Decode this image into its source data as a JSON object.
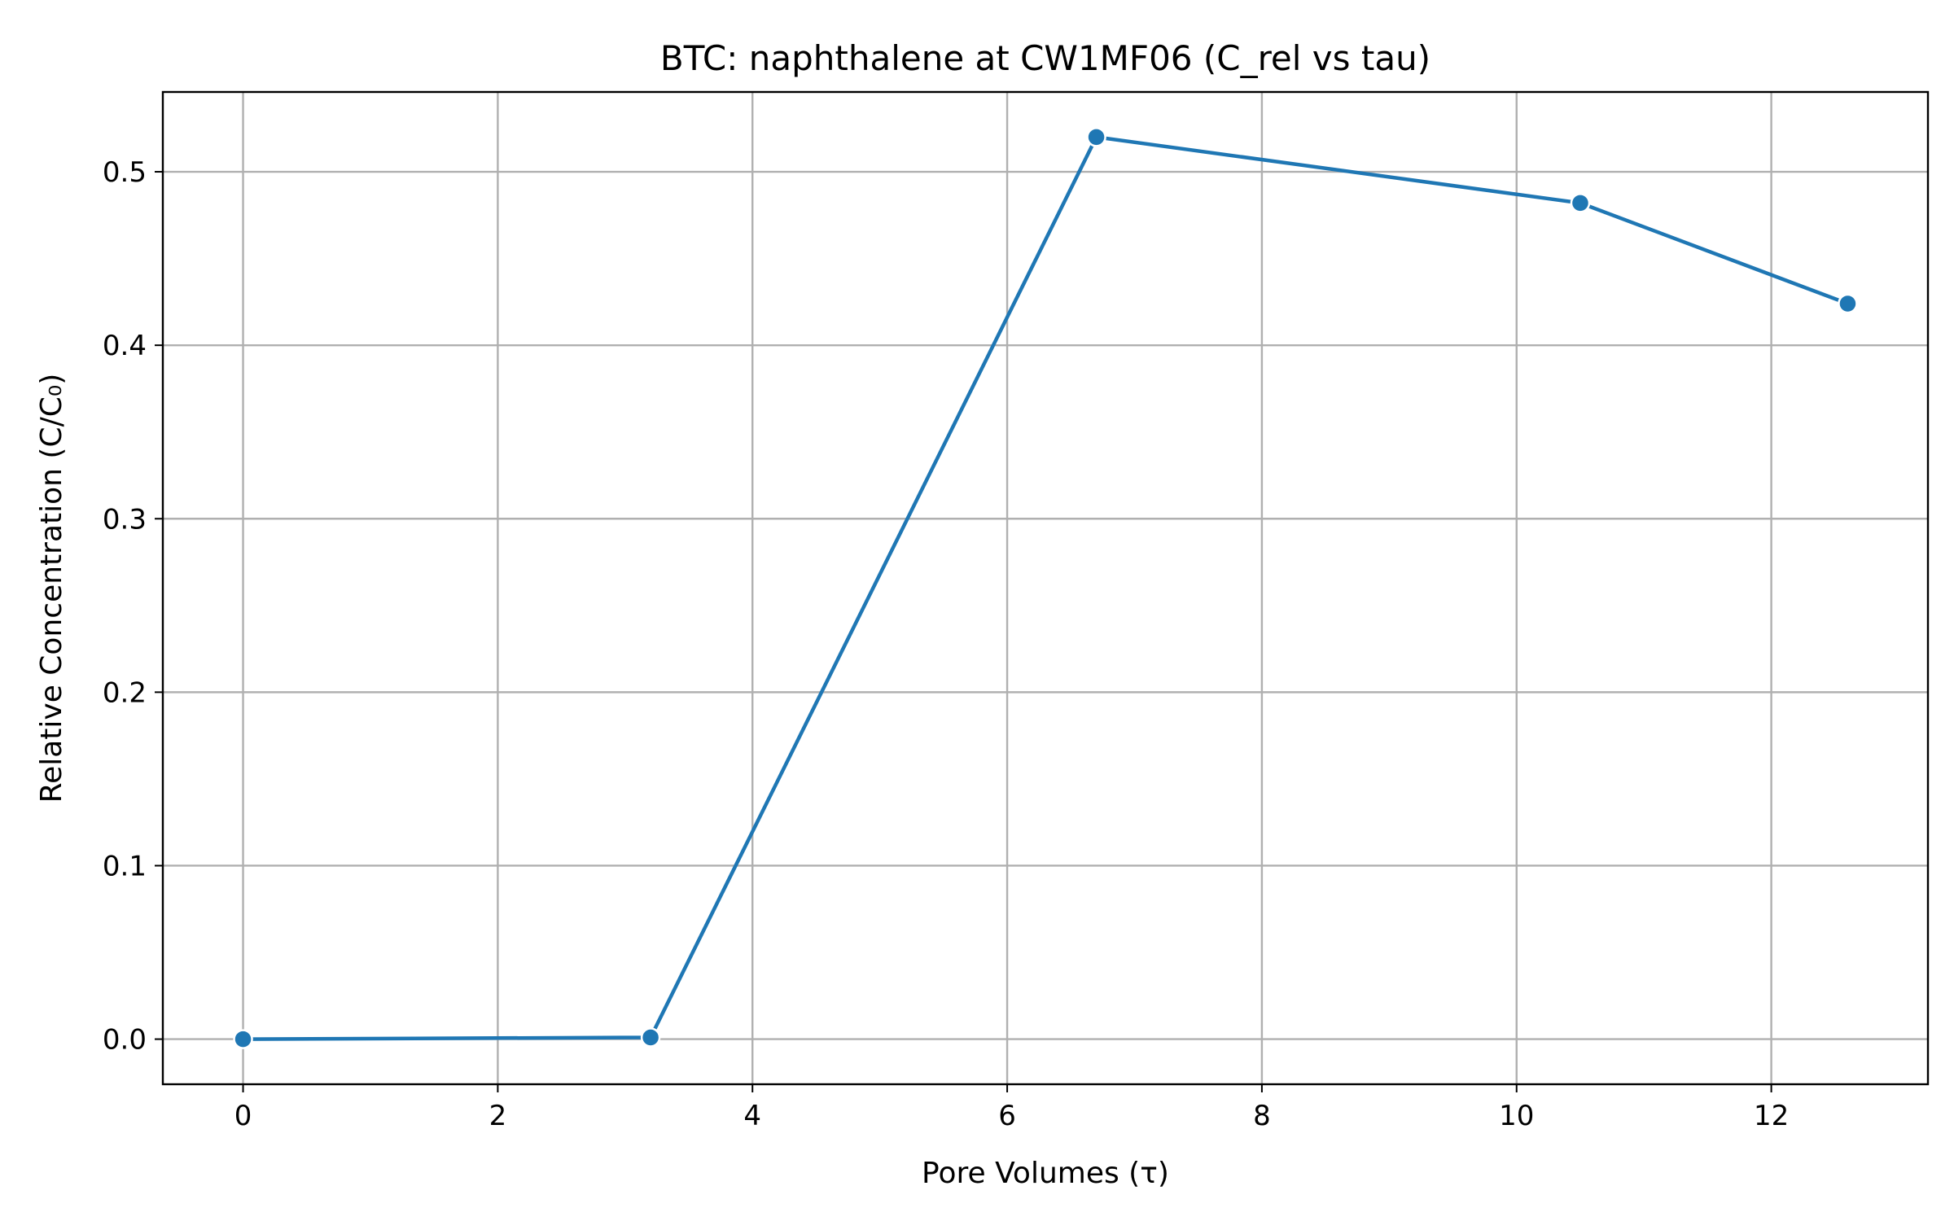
{
  "chart_data": {
    "type": "line",
    "title": "BTC: naphthalene at CW1MF06 (C_rel vs tau)",
    "xlabel": "Pore Volumes (τ)",
    "ylabel": "Relative Concentration (C/C₀)",
    "xlim": [
      -0.63,
      13.23
    ],
    "ylim": [
      -0.026,
      0.546
    ],
    "xticks": [
      0,
      2,
      4,
      6,
      8,
      10,
      12
    ],
    "yticks": [
      0.0,
      0.1,
      0.2,
      0.3,
      0.4,
      0.5
    ],
    "xtick_labels": [
      "0",
      "2",
      "4",
      "6",
      "8",
      "10",
      "12"
    ],
    "ytick_labels": [
      "0.0",
      "0.1",
      "0.2",
      "0.3",
      "0.4",
      "0.5"
    ],
    "grid": true,
    "series": [
      {
        "color": "#1f77b4",
        "marker": "circle",
        "x": [
          0.0,
          3.2,
          6.7,
          10.5,
          12.6
        ],
        "y": [
          0.0,
          0.001,
          0.52,
          0.482,
          0.424
        ]
      }
    ]
  }
}
